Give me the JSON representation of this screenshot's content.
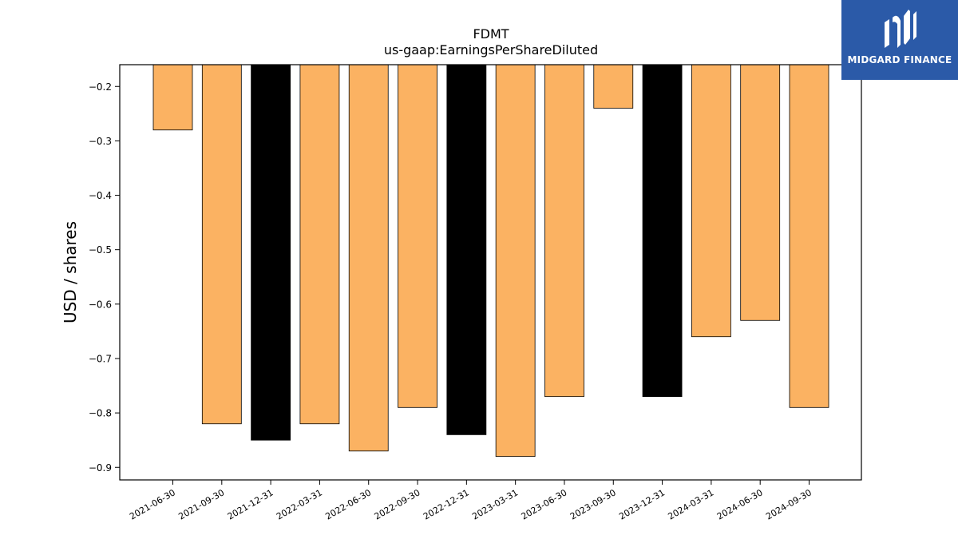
{
  "chart_data": {
    "type": "bar",
    "title": "FDMT",
    "subtitle": "us-gaap:EarningsPerShareDiluted",
    "ylabel": "USD / shares",
    "categories": [
      "2021-06-30",
      "2021-09-30",
      "2021-12-31",
      "2022-03-31",
      "2022-06-30",
      "2022-09-30",
      "2022-12-31",
      "2023-03-31",
      "2023-06-30",
      "2023-09-30",
      "2023-12-31",
      "2024-03-31",
      "2024-06-30",
      "2024-09-30"
    ],
    "values": [
      -0.28,
      -0.82,
      -0.85,
      -0.82,
      -0.87,
      -0.79,
      -0.84,
      -0.88,
      -0.77,
      -0.24,
      -0.77,
      -0.66,
      -0.63,
      -0.79
    ],
    "highlighted": [
      "2021-12-31",
      "2022-12-31",
      "2023-12-31"
    ],
    "ylim": [
      -0.9,
      -0.16
    ],
    "yticks": [
      -0.2,
      -0.3,
      -0.4,
      -0.5,
      -0.6,
      -0.7,
      -0.8,
      -0.9
    ],
    "ytick_labels": [
      "−0.2",
      "−0.3",
      "−0.4",
      "−0.5",
      "−0.6",
      "−0.7",
      "−0.8",
      "−0.9"
    ],
    "colors": {
      "bar": "#fbb262",
      "highlight": "#000000",
      "edge": "#000000"
    },
    "grid": false
  },
  "logo": {
    "text": "MIDGARD FINANCE",
    "bg": "#2b5aa8"
  }
}
